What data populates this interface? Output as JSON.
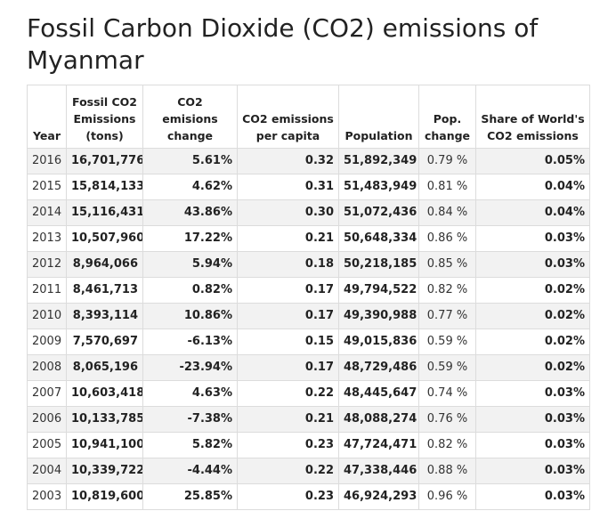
{
  "title": "Fossil Carbon Dioxide (CO2) emissions of Myanmar",
  "table": {
    "headers": {
      "year": "Year",
      "emissions": "Fossil CO2 Emissions (tons)",
      "change": "CO2 emisions change",
      "per_capita": "CO2 emissions per capita",
      "population": "Population",
      "pop_change": "Pop. change",
      "share": "Share of World's CO2 emissions"
    },
    "rows": [
      {
        "year": "2016",
        "emissions": "16,701,776",
        "change": "5.61%",
        "per_capita": "0.32",
        "population": "51,892,349",
        "pop_change": "0.79 %",
        "share": "0.05%"
      },
      {
        "year": "2015",
        "emissions": "15,814,133",
        "change": "4.62%",
        "per_capita": "0.31",
        "population": "51,483,949",
        "pop_change": "0.81 %",
        "share": "0.04%"
      },
      {
        "year": "2014",
        "emissions": "15,116,431",
        "change": "43.86%",
        "per_capita": "0.30",
        "population": "51,072,436",
        "pop_change": "0.84 %",
        "share": "0.04%"
      },
      {
        "year": "2013",
        "emissions": "10,507,960",
        "change": "17.22%",
        "per_capita": "0.21",
        "population": "50,648,334",
        "pop_change": "0.86 %",
        "share": "0.03%"
      },
      {
        "year": "2012",
        "emissions": "8,964,066",
        "change": "5.94%",
        "per_capita": "0.18",
        "population": "50,218,185",
        "pop_change": "0.85 %",
        "share": "0.03%"
      },
      {
        "year": "2011",
        "emissions": "8,461,713",
        "change": "0.82%",
        "per_capita": "0.17",
        "population": "49,794,522",
        "pop_change": "0.82 %",
        "share": "0.02%"
      },
      {
        "year": "2010",
        "emissions": "8,393,114",
        "change": "10.86%",
        "per_capita": "0.17",
        "population": "49,390,988",
        "pop_change": "0.77 %",
        "share": "0.02%"
      },
      {
        "year": "2009",
        "emissions": "7,570,697",
        "change": "-6.13%",
        "per_capita": "0.15",
        "population": "49,015,836",
        "pop_change": "0.59 %",
        "share": "0.02%"
      },
      {
        "year": "2008",
        "emissions": "8,065,196",
        "change": "-23.94%",
        "per_capita": "0.17",
        "population": "48,729,486",
        "pop_change": "0.59 %",
        "share": "0.02%"
      },
      {
        "year": "2007",
        "emissions": "10,603,418",
        "change": "4.63%",
        "per_capita": "0.22",
        "population": "48,445,647",
        "pop_change": "0.74 %",
        "share": "0.03%"
      },
      {
        "year": "2006",
        "emissions": "10,133,785",
        "change": "-7.38%",
        "per_capita": "0.21",
        "population": "48,088,274",
        "pop_change": "0.76 %",
        "share": "0.03%"
      },
      {
        "year": "2005",
        "emissions": "10,941,100",
        "change": "5.82%",
        "per_capita": "0.23",
        "population": "47,724,471",
        "pop_change": "0.82 %",
        "share": "0.03%"
      },
      {
        "year": "2004",
        "emissions": "10,339,722",
        "change": "-4.44%",
        "per_capita": "0.22",
        "population": "47,338,446",
        "pop_change": "0.88 %",
        "share": "0.03%"
      },
      {
        "year": "2003",
        "emissions": "10,819,600",
        "change": "25.85%",
        "per_capita": "0.23",
        "population": "46,924,293",
        "pop_change": "0.96 %",
        "share": "0.03%"
      }
    ]
  }
}
